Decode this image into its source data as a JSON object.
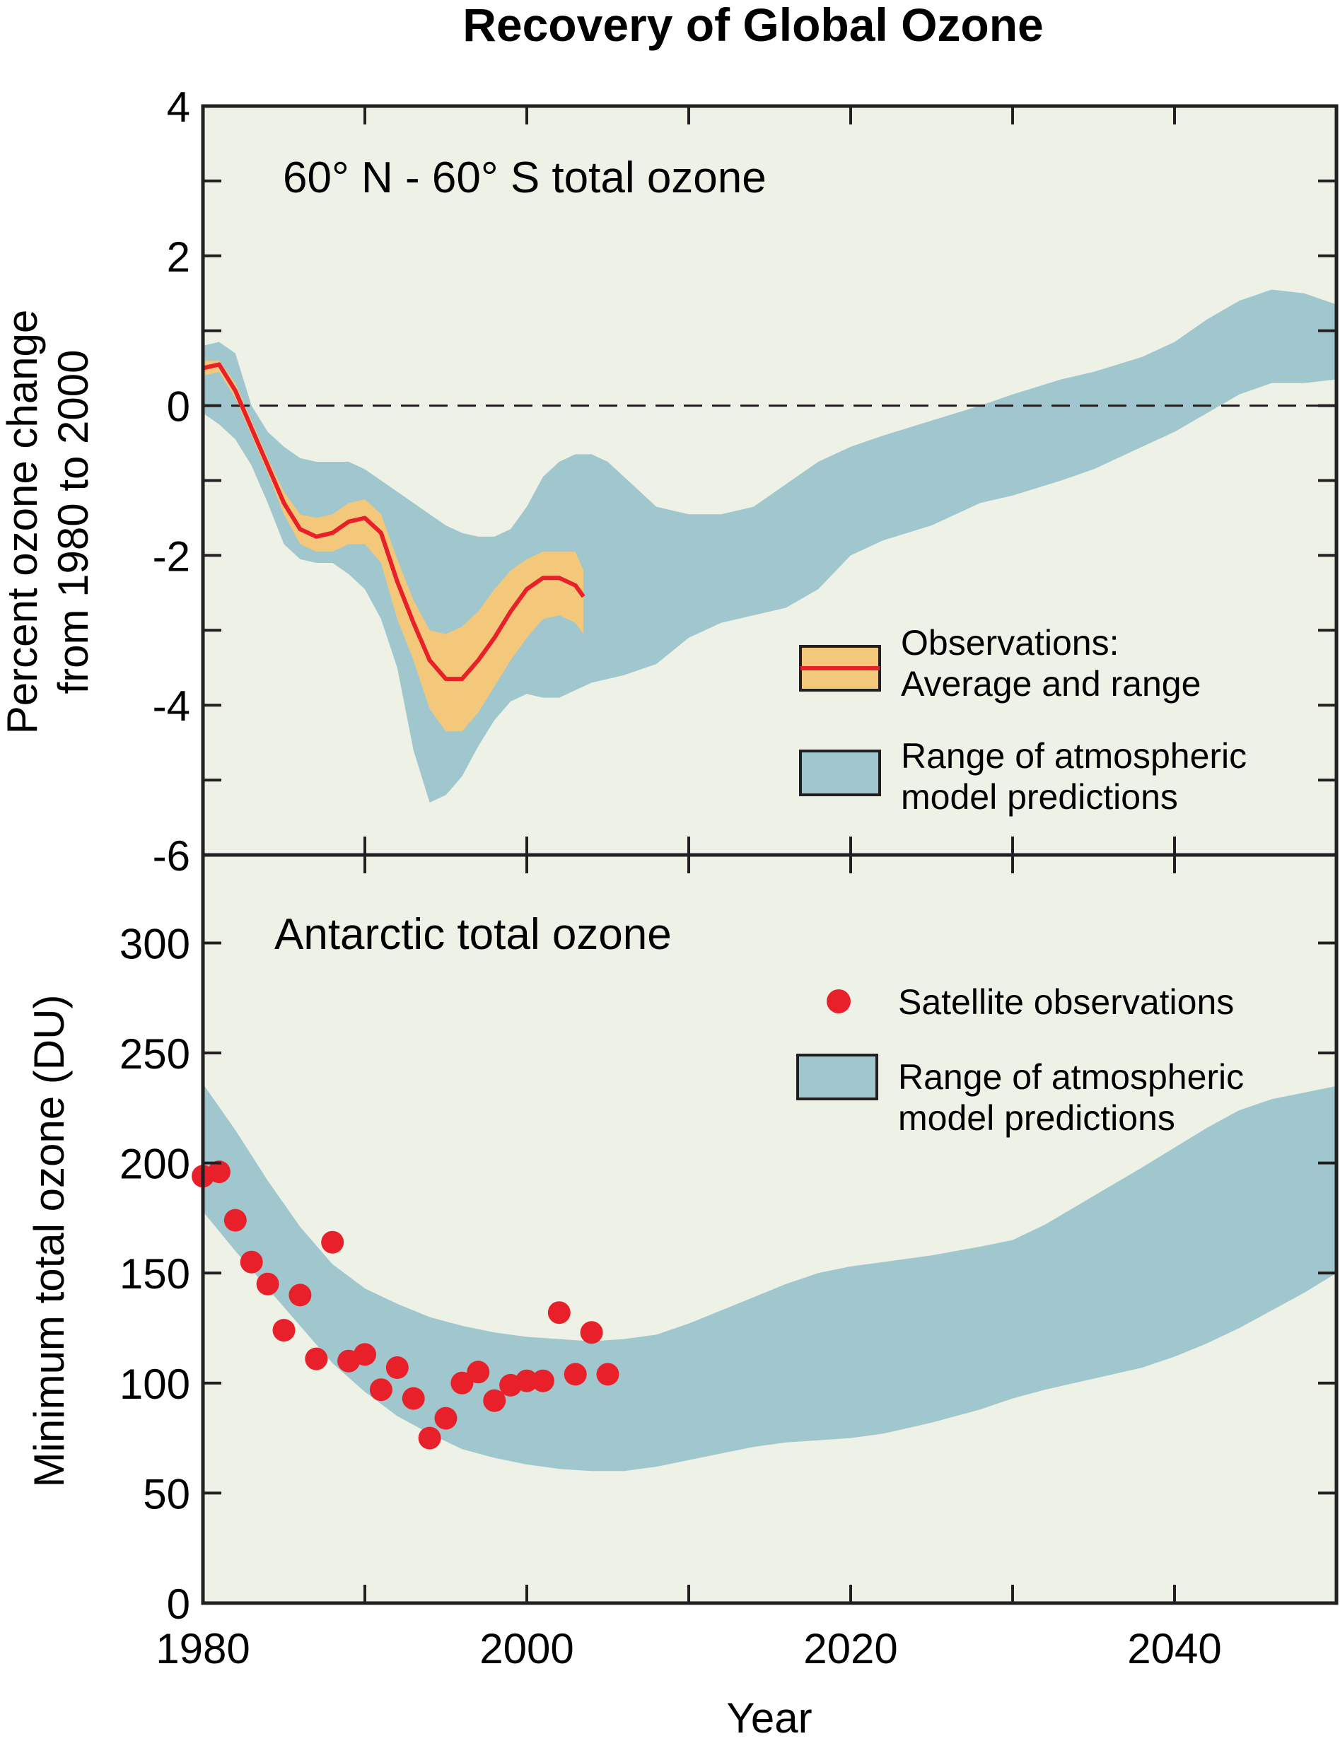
{
  "figure_title": "Recovery of Global Ozone",
  "chart_data": [
    {
      "type": "area",
      "panel": "top",
      "annotation": "60° N - 60° S total ozone",
      "xlabel": "",
      "ylabel_lines": [
        "Percent ozone change",
        "from 1980 to 2000"
      ],
      "xlim": [
        1980,
        2050
      ],
      "ylim": [
        -6,
        4
      ],
      "y_ticks": [
        4,
        2,
        0,
        -2,
        -4,
        -6
      ],
      "y_minor_ticks": [
        3,
        1,
        -1,
        -3,
        -5
      ],
      "x_ticks": [
        1990,
        2000,
        2010,
        2020,
        2030,
        2040
      ],
      "zero_line": "dashed",
      "grid": false,
      "legend_position": "bottom-right",
      "colors": {
        "model_band": "#9fc7cd",
        "observation_band": "#f3c87a",
        "observation_line": "#e8202a",
        "background": "#edf1e6"
      },
      "series": [
        {
          "name": "Observations: Average and range",
          "legend_lines": [
            "Observations:",
            "Average and range"
          ],
          "x": [
            1980,
            1981,
            1982,
            1983,
            1984,
            1985,
            1986,
            1987,
            1988,
            1989,
            1990,
            1991,
            1992,
            1993,
            1994,
            1995,
            1996,
            1997,
            1998,
            1999,
            2000,
            2001,
            2002,
            2003,
            2003.5
          ],
          "average": [
            0.5,
            0.55,
            0.2,
            -0.3,
            -0.8,
            -1.3,
            -1.65,
            -1.75,
            -1.7,
            -1.55,
            -1.5,
            -1.7,
            -2.35,
            -2.9,
            -3.4,
            -3.65,
            -3.65,
            -3.4,
            -3.1,
            -2.75,
            -2.45,
            -2.3,
            -2.3,
            -2.4,
            -2.55
          ],
          "high": [
            0.6,
            0.6,
            0.3,
            -0.2,
            -0.7,
            -1.15,
            -1.45,
            -1.5,
            -1.45,
            -1.3,
            -1.25,
            -1.45,
            -2.05,
            -2.6,
            -3.0,
            -3.05,
            -2.95,
            -2.75,
            -2.45,
            -2.2,
            -2.05,
            -1.95,
            -1.95,
            -1.95,
            -2.2
          ],
          "low": [
            0.4,
            0.45,
            0.1,
            -0.4,
            -0.9,
            -1.45,
            -1.85,
            -1.95,
            -1.95,
            -1.85,
            -1.85,
            -2.1,
            -2.85,
            -3.4,
            -4.05,
            -4.35,
            -4.35,
            -4.1,
            -3.75,
            -3.4,
            -3.1,
            -2.85,
            -2.8,
            -2.9,
            -3.05
          ]
        },
        {
          "name": "Range of atmospheric model predictions",
          "legend_lines": [
            "Range of atmospheric",
            "model predictions"
          ],
          "x": [
            1980,
            1981,
            1982,
            1983,
            1984,
            1985,
            1986,
            1987,
            1988,
            1989,
            1990,
            1991,
            1992,
            1993,
            1994,
            1995,
            1996,
            1997,
            1998,
            1999,
            2000,
            2001,
            2002,
            2003,
            2004,
            2005,
            2006,
            2008,
            2010,
            2012,
            2014,
            2016,
            2018,
            2020,
            2022,
            2025,
            2028,
            2030,
            2033,
            2035,
            2038,
            2040,
            2042,
            2044,
            2046,
            2048,
            2050
          ],
          "high": [
            0.8,
            0.85,
            0.7,
            0.0,
            -0.35,
            -0.55,
            -0.7,
            -0.75,
            -0.75,
            -0.75,
            -0.85,
            -1.0,
            -1.15,
            -1.3,
            -1.45,
            -1.6,
            -1.7,
            -1.75,
            -1.75,
            -1.65,
            -1.35,
            -0.95,
            -0.75,
            -0.65,
            -0.65,
            -0.75,
            -0.95,
            -1.35,
            -1.45,
            -1.45,
            -1.35,
            -1.05,
            -0.75,
            -0.55,
            -0.4,
            -0.2,
            0.0,
            0.15,
            0.35,
            0.45,
            0.65,
            0.85,
            1.15,
            1.4,
            1.55,
            1.5,
            1.35
          ],
          "low": [
            -0.1,
            -0.25,
            -0.45,
            -0.8,
            -1.3,
            -1.85,
            -2.05,
            -2.1,
            -2.1,
            -2.25,
            -2.45,
            -2.85,
            -3.5,
            -4.6,
            -5.3,
            -5.2,
            -4.95,
            -4.55,
            -4.2,
            -3.95,
            -3.85,
            -3.9,
            -3.9,
            -3.8,
            -3.7,
            -3.65,
            -3.6,
            -3.45,
            -3.1,
            -2.9,
            -2.8,
            -2.7,
            -2.45,
            -2.0,
            -1.8,
            -1.6,
            -1.3,
            -1.2,
            -1.0,
            -0.85,
            -0.55,
            -0.35,
            -0.1,
            0.15,
            0.3,
            0.3,
            0.35
          ]
        }
      ]
    },
    {
      "type": "scatter",
      "panel": "bottom",
      "annotation": "Antarctic total ozone",
      "xlabel": "Year",
      "ylabel": "Minimum total ozone (DU)",
      "xlim": [
        1980,
        2050
      ],
      "ylim": [
        0,
        340
      ],
      "y_ticks": [
        0,
        50,
        100,
        150,
        200,
        250,
        300
      ],
      "x_ticks": [
        1980,
        2000,
        2020,
        2040
      ],
      "x_minor_ticks": [
        1990,
        2010,
        2030,
        2050
      ],
      "grid": false,
      "legend_position": "top-right",
      "colors": {
        "model_band": "#9fc7cd",
        "points": "#e8202a",
        "background": "#edf1e6"
      },
      "series": [
        {
          "name": "Satellite observations",
          "legend_lines": [
            "Satellite observations"
          ],
          "x": [
            1980,
            1981,
            1982,
            1983,
            1984,
            1985,
            1986,
            1987,
            1988,
            1989,
            1990,
            1991,
            1992,
            1993,
            1994,
            1995,
            1996,
            1997,
            1998,
            1999,
            2000,
            2001,
            2002,
            2003,
            2004,
            2005
          ],
          "values": [
            194,
            196,
            174,
            155,
            145,
            124,
            140,
            111,
            164,
            110,
            113,
            97,
            107,
            93,
            75,
            84,
            100,
            105,
            92,
            99,
            101,
            101,
            132,
            104,
            123,
            104
          ]
        },
        {
          "name": "Range of atmospheric model predictions",
          "legend_lines": [
            "Range of atmospheric",
            "model predictions"
          ],
          "x": [
            1980,
            1982,
            1984,
            1986,
            1988,
            1990,
            1992,
            1994,
            1996,
            1998,
            2000,
            2002,
            2004,
            2006,
            2008,
            2010,
            2012,
            2014,
            2016,
            2018,
            2020,
            2022,
            2025,
            2028,
            2030,
            2032,
            2035,
            2038,
            2040,
            2042,
            2044,
            2046,
            2048,
            2050
          ],
          "high": [
            236,
            215,
            192,
            171,
            154,
            143,
            136,
            130,
            126,
            123,
            121,
            120,
            119,
            120,
            122,
            127,
            133,
            139,
            145,
            150,
            153,
            155,
            158,
            162,
            165,
            172,
            185,
            198,
            207,
            216,
            224,
            229,
            232,
            235
          ],
          "low": [
            178,
            160,
            143,
            126,
            109,
            96,
            85,
            77,
            70,
            66,
            63,
            61,
            60,
            60,
            62,
            65,
            68,
            71,
            73,
            74,
            75,
            77,
            82,
            88,
            93,
            97,
            102,
            107,
            112,
            118,
            125,
            133,
            141,
            150
          ]
        }
      ]
    }
  ]
}
